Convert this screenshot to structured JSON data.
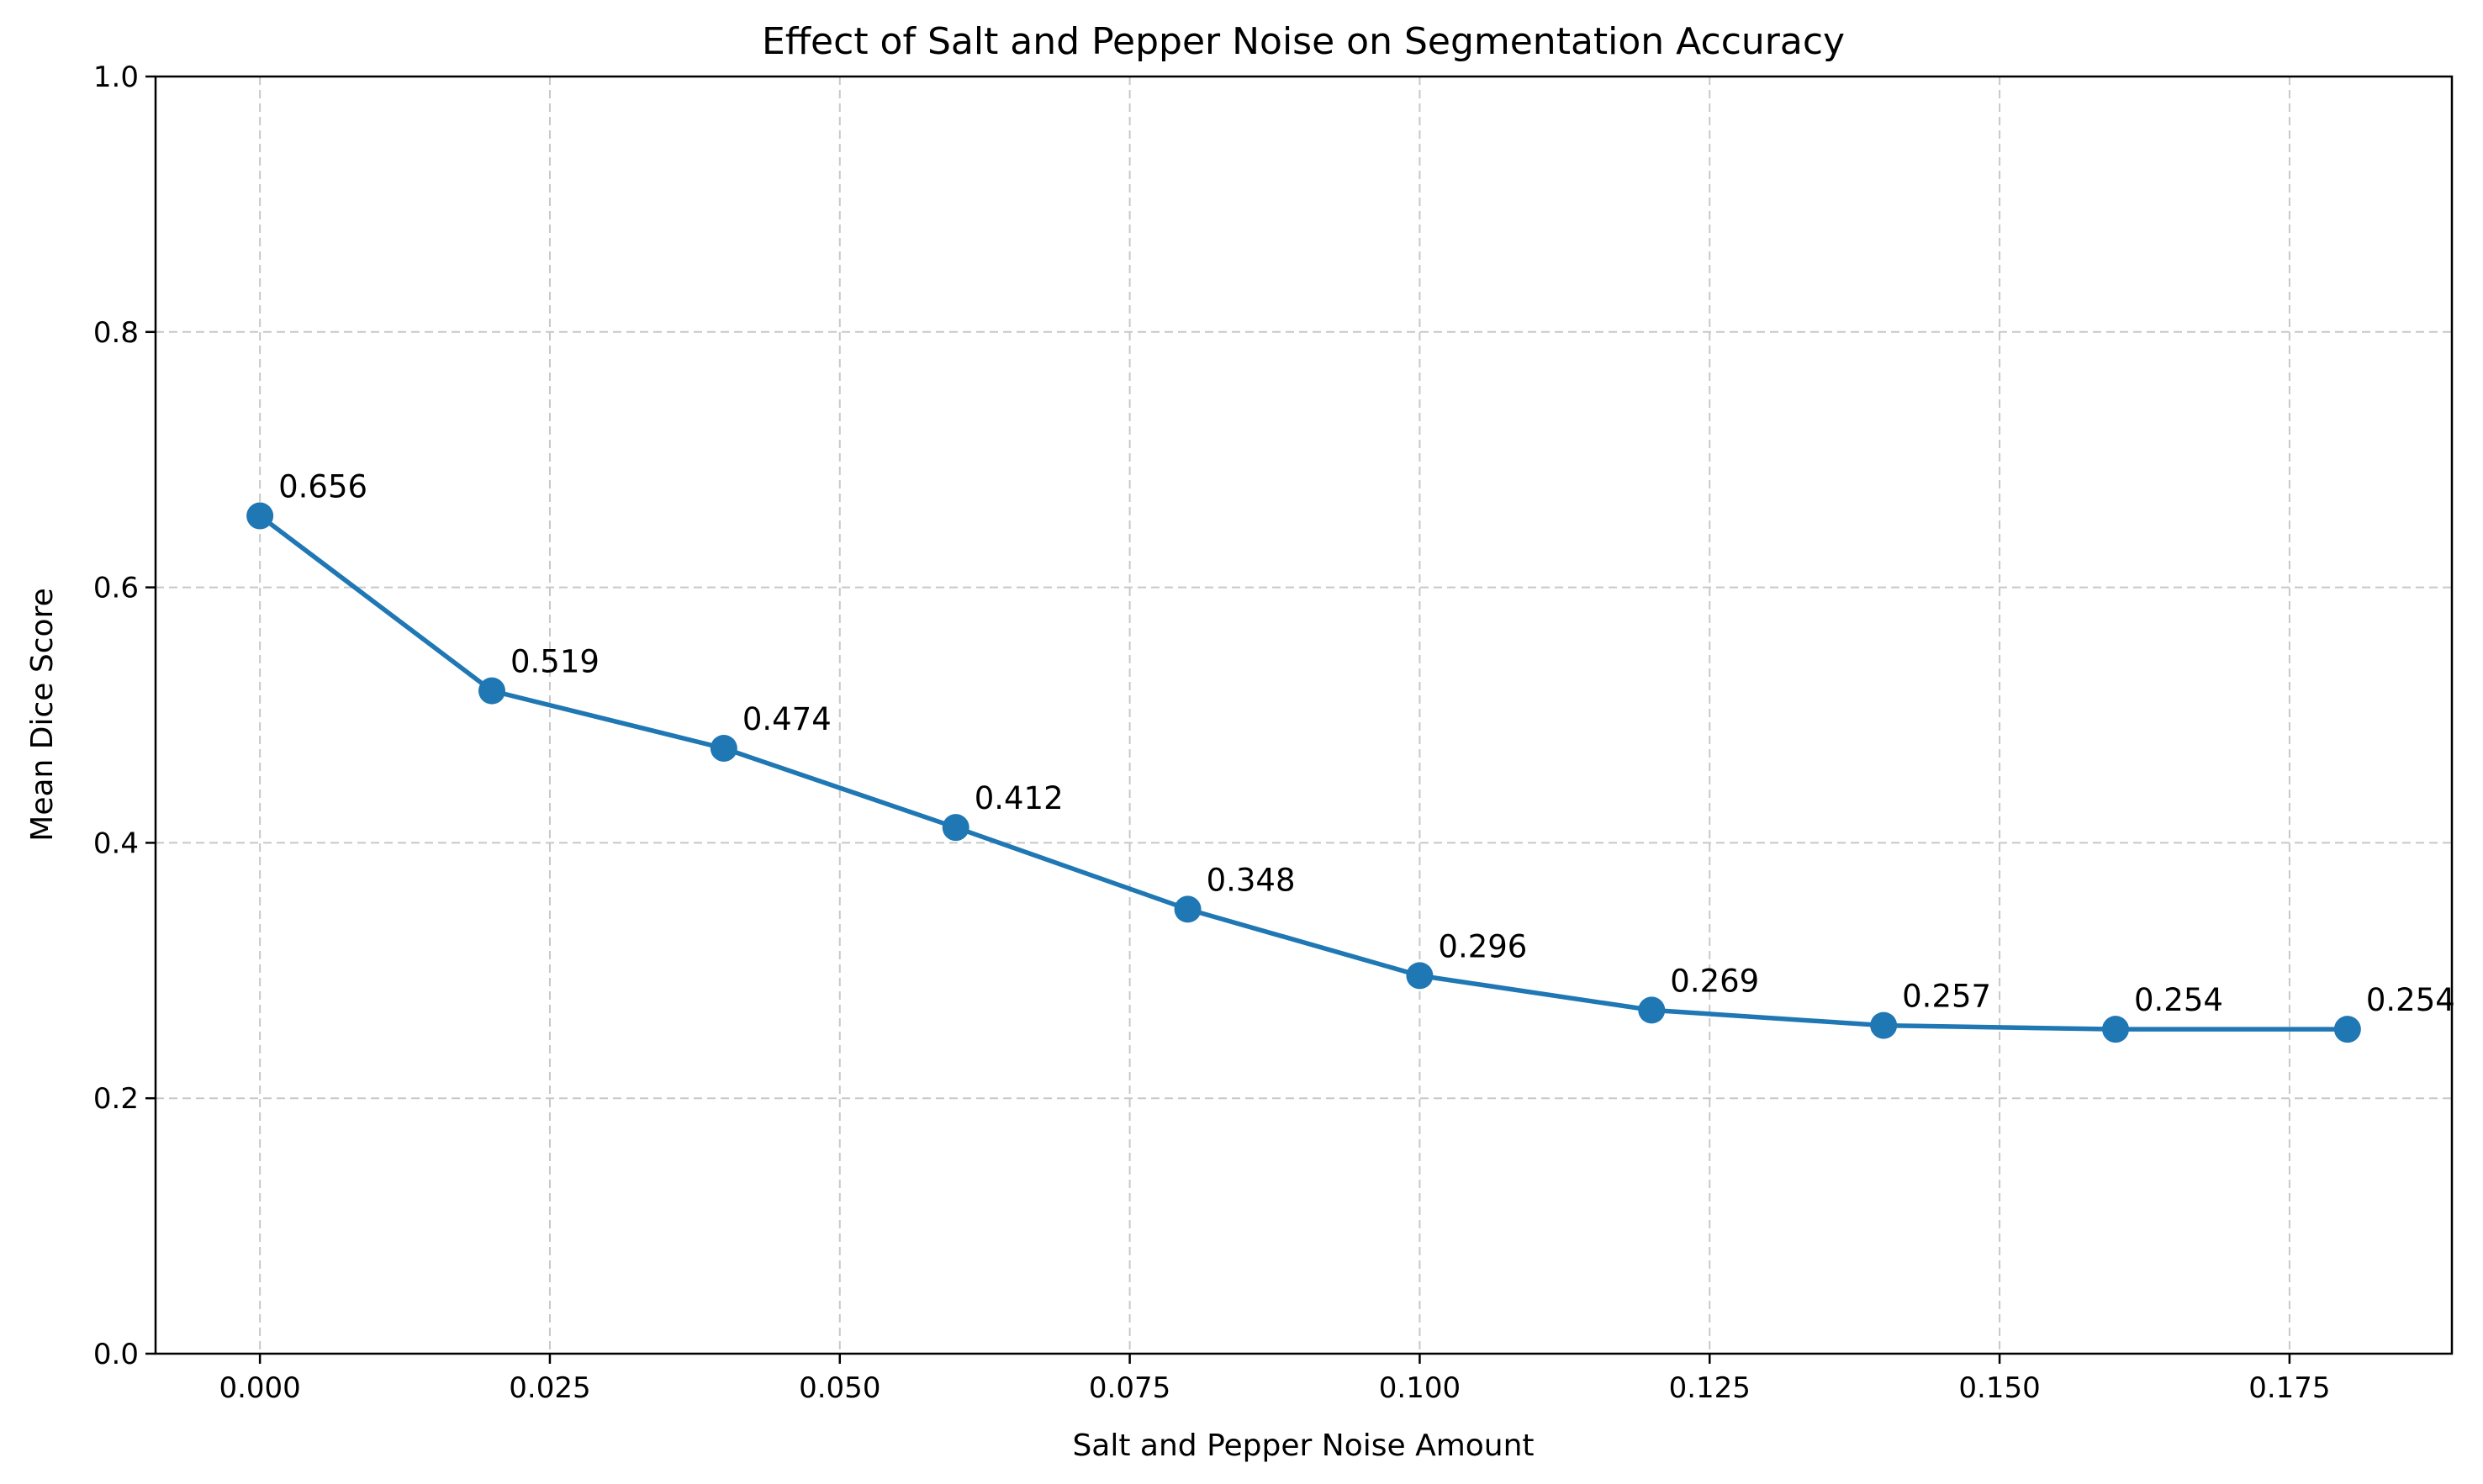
{
  "chart_data": {
    "type": "line",
    "title": "Effect of Salt and Pepper Noise on Segmentation Accuracy",
    "xlabel": "Salt and Pepper Noise Amount",
    "ylabel": "Mean Dice Score",
    "xlim": [
      -0.009,
      0.189
    ],
    "ylim": [
      0,
      1
    ],
    "x_ticks": [
      "0.000",
      "0.025",
      "0.050",
      "0.075",
      "0.100",
      "0.125",
      "0.150",
      "0.175"
    ],
    "y_ticks": [
      "0.0",
      "0.2",
      "0.4",
      "0.6",
      "0.8",
      "1.0"
    ],
    "grid": true,
    "series": [
      {
        "x": [
          0.0,
          0.02,
          0.04,
          0.06,
          0.08,
          0.1,
          0.12,
          0.14,
          0.16,
          0.18
        ],
        "values": [
          0.656,
          0.519,
          0.474,
          0.412,
          0.348,
          0.296,
          0.269,
          0.257,
          0.254,
          0.254
        ],
        "labels": [
          "0.656",
          "0.519",
          "0.474",
          "0.412",
          "0.348",
          "0.296",
          "0.269",
          "0.257",
          "0.254",
          "0.254"
        ],
        "color": "#1f77b4",
        "marker": "circle"
      }
    ]
  }
}
